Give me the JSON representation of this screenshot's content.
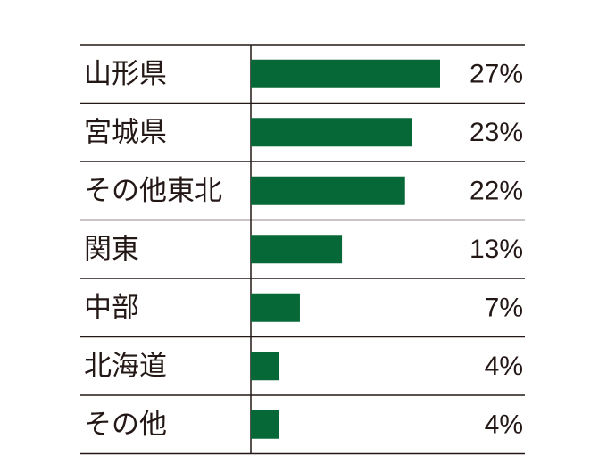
{
  "chart_data": {
    "type": "bar",
    "orientation": "horizontal",
    "categories": [
      "山形県",
      "宮城県",
      "その他東北",
      "関東",
      "中部",
      "北海道",
      "その他"
    ],
    "values": [
      27,
      23,
      22,
      13,
      7,
      4,
      4
    ],
    "value_labels": [
      "27%",
      "23%",
      "22%",
      "13%",
      "7%",
      "4%",
      "4%"
    ],
    "xlim": [
      0,
      27
    ],
    "grid": false,
    "colors": {
      "bar": "#076837",
      "line": "#231815",
      "text": "#231815"
    }
  }
}
